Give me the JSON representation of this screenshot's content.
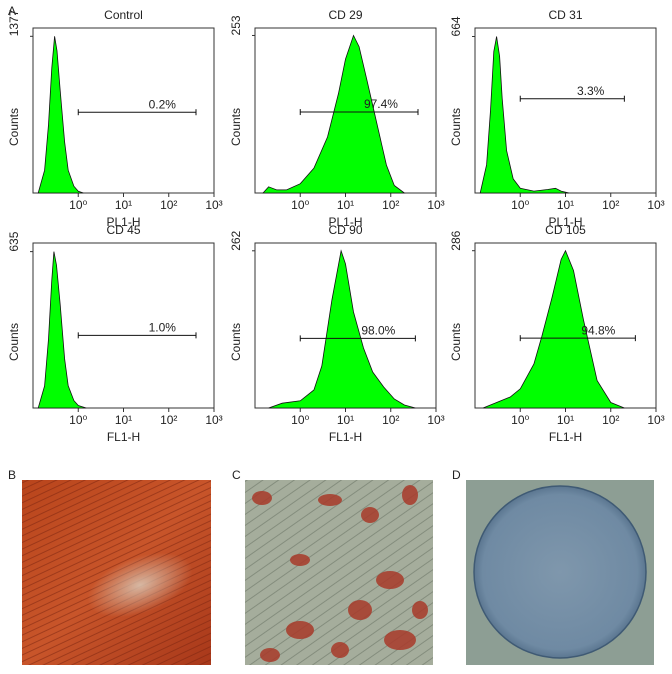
{
  "panel_labels": [
    "A",
    "B",
    "C",
    "D"
  ],
  "chart_data": [
    {
      "type": "area",
      "title": "Control",
      "x_label": "PL1-H",
      "y_label": "Counts",
      "color": "#00ff00",
      "log_x": true,
      "x": [
        0.13,
        0.18,
        0.22,
        0.26,
        0.3,
        0.34,
        0.4,
        0.5,
        0.6,
        0.8,
        1.0,
        1.3
      ],
      "values": [
        0,
        200,
        600,
        1100,
        1377,
        1250,
        900,
        450,
        200,
        60,
        15,
        0
      ],
      "xlim": [
        0.1,
        1000
      ],
      "ylim": [
        0,
        1450
      ],
      "yticks": [
        1377
      ],
      "xticks": [
        {
          "value": 1,
          "label": "10⁰"
        },
        {
          "value": 10,
          "label": "10¹"
        },
        {
          "value": 100,
          "label": "10²"
        },
        {
          "value": 1000,
          "label": "10³"
        }
      ],
      "gate": [
        1,
        400
      ],
      "gate_y": 710,
      "annotation": "0.2%"
    },
    {
      "type": "area",
      "title": "CD 29",
      "x_label": "PL1-H",
      "y_label": "Counts",
      "color": "#00ff00",
      "log_x": true,
      "x": [
        0.15,
        0.2,
        0.3,
        0.5,
        1,
        2,
        4,
        7,
        10,
        15,
        20,
        30,
        50,
        80,
        120,
        200
      ],
      "values": [
        0,
        10,
        5,
        5,
        15,
        40,
        90,
        160,
        215,
        253,
        235,
        180,
        110,
        45,
        12,
        0
      ],
      "xlim": [
        0.1,
        1000
      ],
      "ylim": [
        0,
        265
      ],
      "yticks": [
        253
      ],
      "xticks": [
        {
          "value": 1,
          "label": "10⁰"
        },
        {
          "value": 10,
          "label": "10¹"
        },
        {
          "value": 100,
          "label": "10²"
        },
        {
          "value": 1000,
          "label": "10³"
        }
      ],
      "gate": [
        1,
        400
      ],
      "gate_y": 130,
      "annotation": "97.4%"
    },
    {
      "type": "area",
      "title": "CD 31",
      "x_label": "PL1-H",
      "y_label": "Counts",
      "color": "#00ff00",
      "log_x": true,
      "x": [
        0.13,
        0.18,
        0.22,
        0.26,
        0.3,
        0.35,
        0.4,
        0.5,
        0.7,
        1,
        2,
        4,
        6,
        8,
        12
      ],
      "values": [
        0,
        120,
        350,
        600,
        664,
        580,
        400,
        180,
        60,
        20,
        8,
        15,
        20,
        8,
        0
      ],
      "xlim": [
        0.1,
        1000
      ],
      "ylim": [
        0,
        700
      ],
      "yticks": [
        664
      ],
      "xticks": [
        {
          "value": 1,
          "label": "10⁰"
        },
        {
          "value": 10,
          "label": "10¹"
        },
        {
          "value": 100,
          "label": "10²"
        },
        {
          "value": 1000,
          "label": "10³"
        }
      ],
      "gate": [
        1,
        200
      ],
      "gate_y": 400,
      "annotation": "3.3%"
    },
    {
      "type": "area",
      "title": "CD 45",
      "x_label": "FL1-H",
      "y_label": "Counts",
      "color": "#00ff00",
      "log_x": true,
      "x": [
        0.13,
        0.18,
        0.22,
        0.26,
        0.29,
        0.33,
        0.4,
        0.5,
        0.6,
        0.8,
        1.0,
        1.5
      ],
      "values": [
        0,
        90,
        280,
        520,
        635,
        580,
        420,
        200,
        90,
        30,
        10,
        0
      ],
      "xlim": [
        0.1,
        1000
      ],
      "ylim": [
        0,
        670
      ],
      "yticks": [
        635
      ],
      "xticks": [
        {
          "value": 1,
          "label": "10⁰"
        },
        {
          "value": 10,
          "label": "10¹"
        },
        {
          "value": 100,
          "label": "10²"
        },
        {
          "value": 1000,
          "label": "10³"
        }
      ],
      "gate": [
        1,
        400
      ],
      "gate_y": 295,
      "annotation": "1.0%"
    },
    {
      "type": "area",
      "title": "CD 90",
      "x_label": "FL1-H",
      "y_label": "Counts",
      "color": "#00ff00",
      "log_x": true,
      "x": [
        0.2,
        0.4,
        1,
        2,
        3,
        5,
        8,
        10,
        15,
        25,
        40,
        70,
        120,
        200,
        350
      ],
      "values": [
        0,
        8,
        12,
        30,
        70,
        180,
        262,
        240,
        160,
        100,
        60,
        35,
        15,
        5,
        0
      ],
      "xlim": [
        0.1,
        1000
      ],
      "ylim": [
        0,
        275
      ],
      "yticks": [
        262
      ],
      "xticks": [
        {
          "value": 1,
          "label": "10⁰"
        },
        {
          "value": 10,
          "label": "10¹"
        },
        {
          "value": 100,
          "label": "10²"
        },
        {
          "value": 1000,
          "label": "10³"
        }
      ],
      "gate": [
        1,
        350
      ],
      "gate_y": 116,
      "annotation": "98.0%"
    },
    {
      "type": "area",
      "title": "CD 105",
      "x_label": "FL1-H",
      "y_label": "Counts",
      "color": "#00ff00",
      "log_x": true,
      "x": [
        0.15,
        0.3,
        0.6,
        1,
        2,
        3,
        5,
        8,
        10,
        15,
        25,
        50,
        100,
        200
      ],
      "values": [
        0,
        10,
        20,
        35,
        80,
        130,
        200,
        270,
        286,
        250,
        160,
        50,
        10,
        0
      ],
      "xlim": [
        0.1,
        1000
      ],
      "ylim": [
        0,
        300
      ],
      "yticks": [
        286
      ],
      "xticks": [
        {
          "value": 1,
          "label": "10⁰"
        },
        {
          "value": 10,
          "label": "10¹"
        },
        {
          "value": 100,
          "label": "10²"
        },
        {
          "value": 1000,
          "label": "10³"
        }
      ],
      "gate": [
        1,
        350
      ],
      "gate_y": 127,
      "annotation": "94.8%"
    }
  ]
}
